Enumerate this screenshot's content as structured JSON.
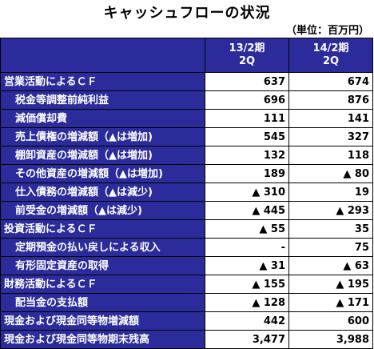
{
  "title": "キャッシュフローの状況",
  "unit": "（単位：百万円）",
  "columns": [
    {
      "line1": "13/2期",
      "line2": "2Q"
    },
    {
      "line1": "14/2期",
      "line2": "2Q"
    }
  ],
  "rows": [
    {
      "label": "営業活動によるＣＦ",
      "v1": "637",
      "v2": "674"
    },
    {
      "label": "税金等調整前純利益",
      "v1": "696",
      "v2": "876"
    },
    {
      "label": "減価償却費",
      "v1": "111",
      "v2": "141"
    },
    {
      "label": "売上債権の増減額（▲は増加)",
      "v1": "545",
      "v2": "327"
    },
    {
      "label": "棚卸資産の増減額（▲は増加)",
      "v1": "132",
      "v2": "118"
    },
    {
      "label": "その他資産の増減額（▲は増加)",
      "v1": "189",
      "v2": "▲ 80"
    },
    {
      "label": "仕入債務の増減額（▲は減少)",
      "v1": "▲ 310",
      "v2": "19"
    },
    {
      "label": "前受金の増減額（▲は減少)",
      "v1": "▲ 445",
      "v2": "▲ 293"
    },
    {
      "label": "投資活動によるＣＦ",
      "v1": "▲ 55",
      "v2": "35"
    },
    {
      "label": "定期預金の払い戻しによる収入",
      "v1": "-",
      "v2": "75"
    },
    {
      "label": "有形固定資産の取得",
      "v1": "▲ 31",
      "v2": "▲ 63"
    },
    {
      "label": "財務活動によるＣＦ",
      "v1": "▲ 155",
      "v2": "▲ 195"
    },
    {
      "label": "配当金の支払額",
      "v1": "▲ 128",
      "v2": "▲ 171"
    },
    {
      "label": "現金および現金同等物増減額",
      "v1": "442",
      "v2": "600"
    },
    {
      "label": "現金および現金同等物期末残高",
      "v1": "3,477",
      "v2": "3,988"
    }
  ]
}
